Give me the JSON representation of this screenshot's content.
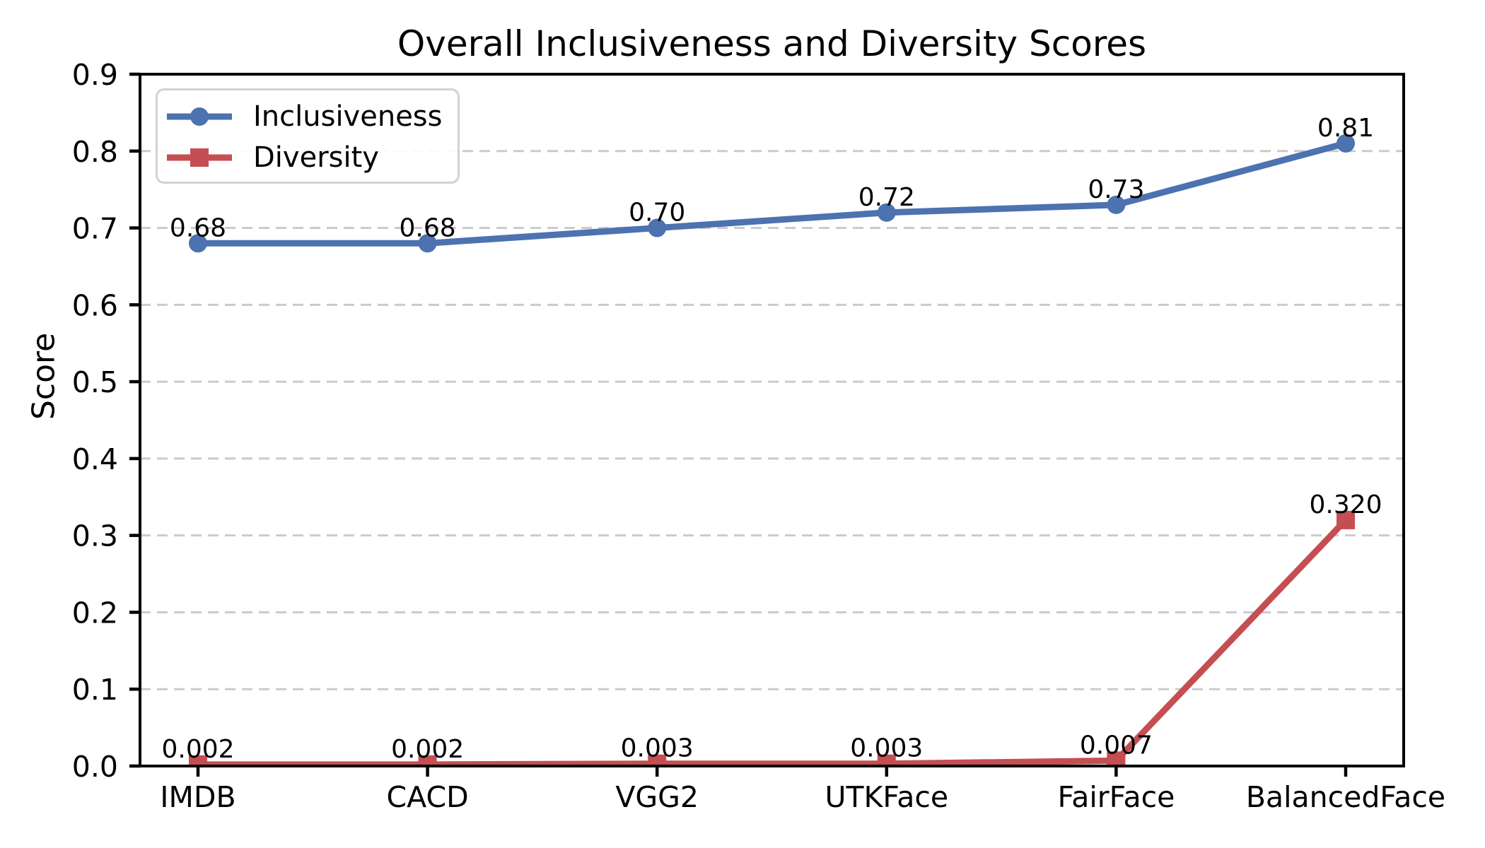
{
  "chart_data": {
    "type": "line",
    "title": "Overall Inclusiveness and Diversity Scores",
    "xlabel": "",
    "ylabel": "Score",
    "categories": [
      "IMDB",
      "CACD",
      "VGG2",
      "UTKFace",
      "FairFace",
      "BalancedFace"
    ],
    "series": [
      {
        "name": "Inclusiveness",
        "color": "#4C72B0",
        "marker": "circle",
        "values": [
          0.68,
          0.68,
          0.7,
          0.72,
          0.73,
          0.81
        ],
        "point_labels": [
          "0.68",
          "0.68",
          "0.70",
          "0.72",
          "0.73",
          "0.81"
        ]
      },
      {
        "name": "Diversity",
        "color": "#C44E52",
        "marker": "square",
        "values": [
          0.002,
          0.002,
          0.003,
          0.003,
          0.007,
          0.32
        ],
        "point_labels": [
          "0.002",
          "0.002",
          "0.003",
          "0.003",
          "0.007",
          "0.320"
        ]
      }
    ],
    "ylim": [
      0.0,
      0.9
    ],
    "ytick_labels": [
      "0.0",
      "0.1",
      "0.2",
      "0.3",
      "0.4",
      "0.5",
      "0.6",
      "0.7",
      "0.8",
      "0.9"
    ],
    "grid": "horizontal-dashed",
    "legend_position": "upper-left"
  },
  "colors": {
    "grid": "#cbcbcb",
    "axis": "#000000",
    "text": "#000000",
    "legend_border": "#d2d2d2",
    "background": "#ffffff"
  }
}
